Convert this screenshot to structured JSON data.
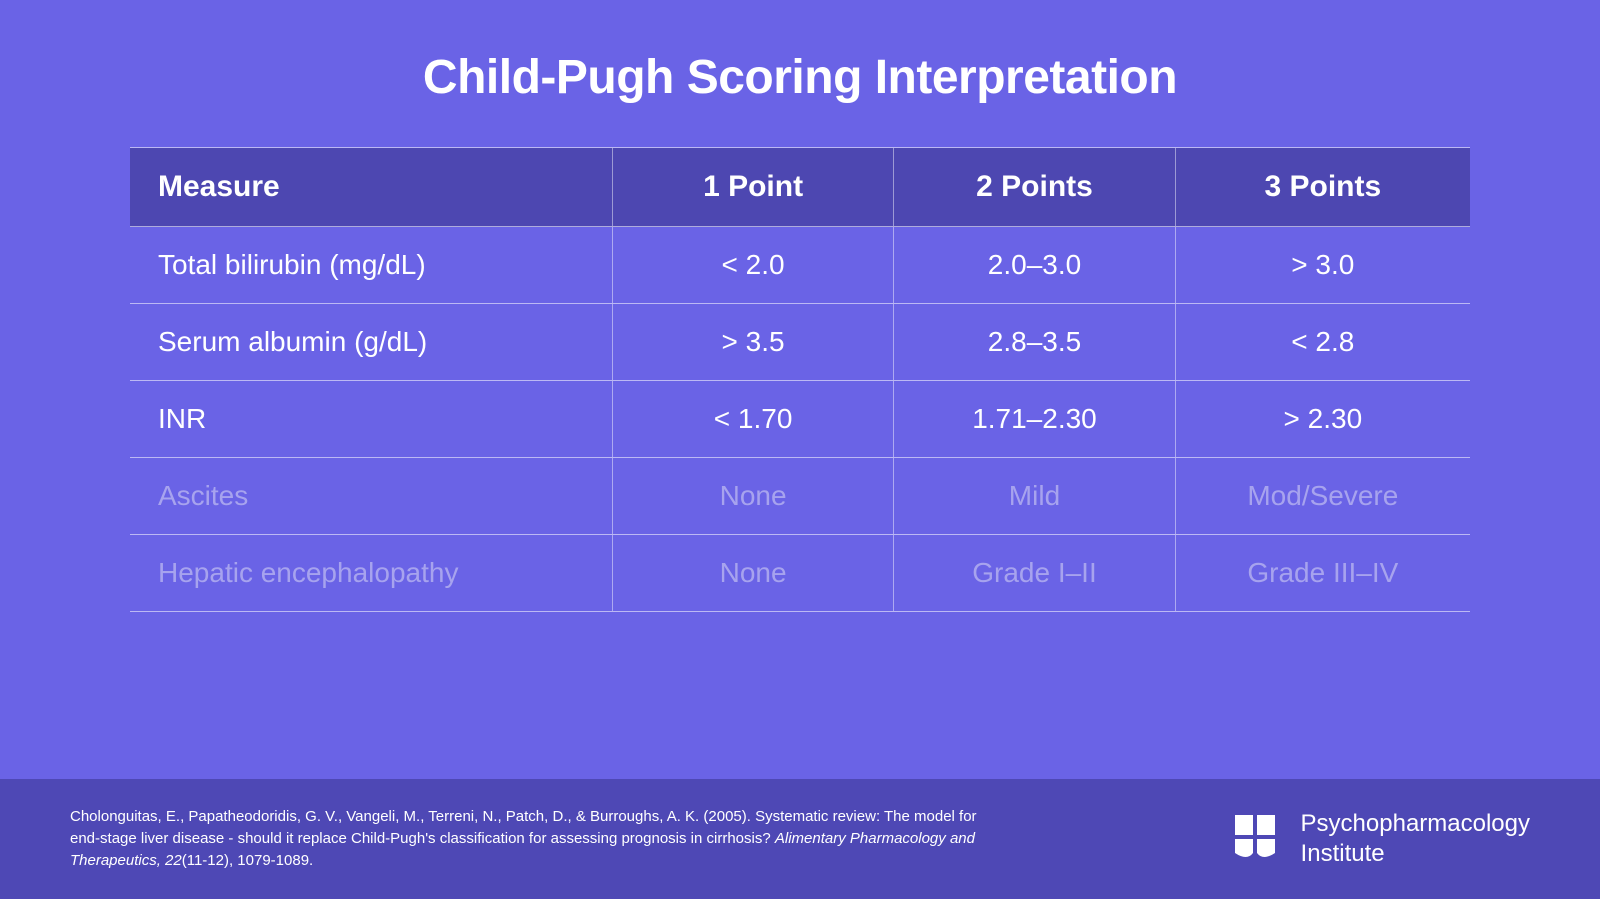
{
  "colors": {
    "background": "#6a63e6",
    "header_row": "#4d47b1",
    "footer": "#4e48b5",
    "divider": "#ffffff",
    "divider_opacity": 0.55,
    "text_primary": "#ffffff",
    "text_dim": "#a7a3ee",
    "col_divider": "#ffffff",
    "col_divider_opacity": 0.45
  },
  "title": {
    "text": "Child-Pugh Scoring Interpretation",
    "fontsize": 48,
    "color": "#ffffff"
  },
  "table": {
    "header_fontsize": 30,
    "cell_fontsize": 28,
    "columns": [
      {
        "key": "measure",
        "label": "Measure",
        "align": "left"
      },
      {
        "key": "p1",
        "label": "1 Point",
        "align": "center"
      },
      {
        "key": "p2",
        "label": "2 Points",
        "align": "center"
      },
      {
        "key": "p3",
        "label": "3 Points",
        "align": "center"
      }
    ],
    "rows": [
      {
        "measure": "Total bilirubin (mg/dL)",
        "p1": "< 2.0",
        "p2": "2.0–3.0",
        "p3": "> 3.0",
        "dim": false
      },
      {
        "measure": "Serum albumin (g/dL)",
        "p1": "> 3.5",
        "p2": "2.8–3.5",
        "p3": "< 2.8",
        "dim": false
      },
      {
        "measure": "INR",
        "p1": "< 1.70",
        "p2": "1.71–2.30",
        "p3": "> 2.30",
        "dim": false
      },
      {
        "measure": "Ascites",
        "p1": "None",
        "p2": "Mild",
        "p3": "Mod/Severe",
        "dim": true
      },
      {
        "measure": "Hepatic encephalopathy",
        "p1": "None",
        "p2": "Grade I–II",
        "p3": "Grade III–IV",
        "dim": true
      }
    ]
  },
  "footer": {
    "citation_a": "Cholonguitas, E., Papatheodoridis, G. V., Vangeli, M., Terreni, N., Patch, D., & Burroughs, A. K. (2005). Systematic review: The model for end-stage liver disease - should it replace Child-Pugh's classification for assessing prognosis in cirrhosis? ",
    "citation_i": "Alimentary Pharmacology and Therapeutics, 22",
    "citation_b": "(11-12), 1079-1089.",
    "brand_line1": "Psychopharmacology",
    "brand_line2": "Institute",
    "text_color": "#ffffff"
  }
}
